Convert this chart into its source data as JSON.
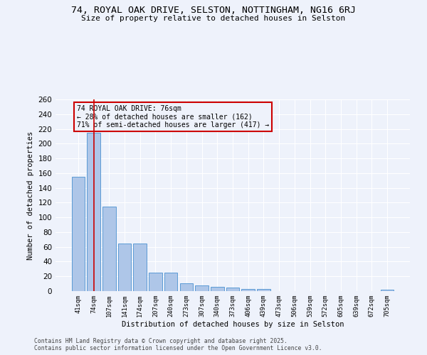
{
  "title1": "74, ROYAL OAK DRIVE, SELSTON, NOTTINGHAM, NG16 6RJ",
  "title2": "Size of property relative to detached houses in Selston",
  "xlabel": "Distribution of detached houses by size in Selston",
  "ylabel": "Number of detached properties",
  "bar_color": "#aec6e8",
  "bar_edge_color": "#5b9bd5",
  "background_color": "#eef2fb",
  "grid_color": "#ffffff",
  "annotation_box_color": "#cc0000",
  "vline_color": "#cc0000",
  "categories": [
    "41sqm",
    "74sqm",
    "107sqm",
    "141sqm",
    "174sqm",
    "207sqm",
    "240sqm",
    "273sqm",
    "307sqm",
    "340sqm",
    "373sqm",
    "406sqm",
    "439sqm",
    "473sqm",
    "506sqm",
    "539sqm",
    "572sqm",
    "605sqm",
    "639sqm",
    "672sqm",
    "705sqm"
  ],
  "values": [
    155,
    215,
    115,
    65,
    65,
    25,
    25,
    11,
    8,
    6,
    5,
    3,
    3,
    0,
    0,
    0,
    0,
    0,
    0,
    0,
    2
  ],
  "vline_position": 1,
  "annotation_text": "74 ROYAL OAK DRIVE: 76sqm\n← 28% of detached houses are smaller (162)\n71% of semi-detached houses are larger (417) →",
  "footer1": "Contains HM Land Registry data © Crown copyright and database right 2025.",
  "footer2": "Contains public sector information licensed under the Open Government Licence v3.0.",
  "ylim": [
    0,
    260
  ],
  "yticks": [
    0,
    20,
    40,
    60,
    80,
    100,
    120,
    140,
    160,
    180,
    200,
    220,
    240,
    260
  ]
}
